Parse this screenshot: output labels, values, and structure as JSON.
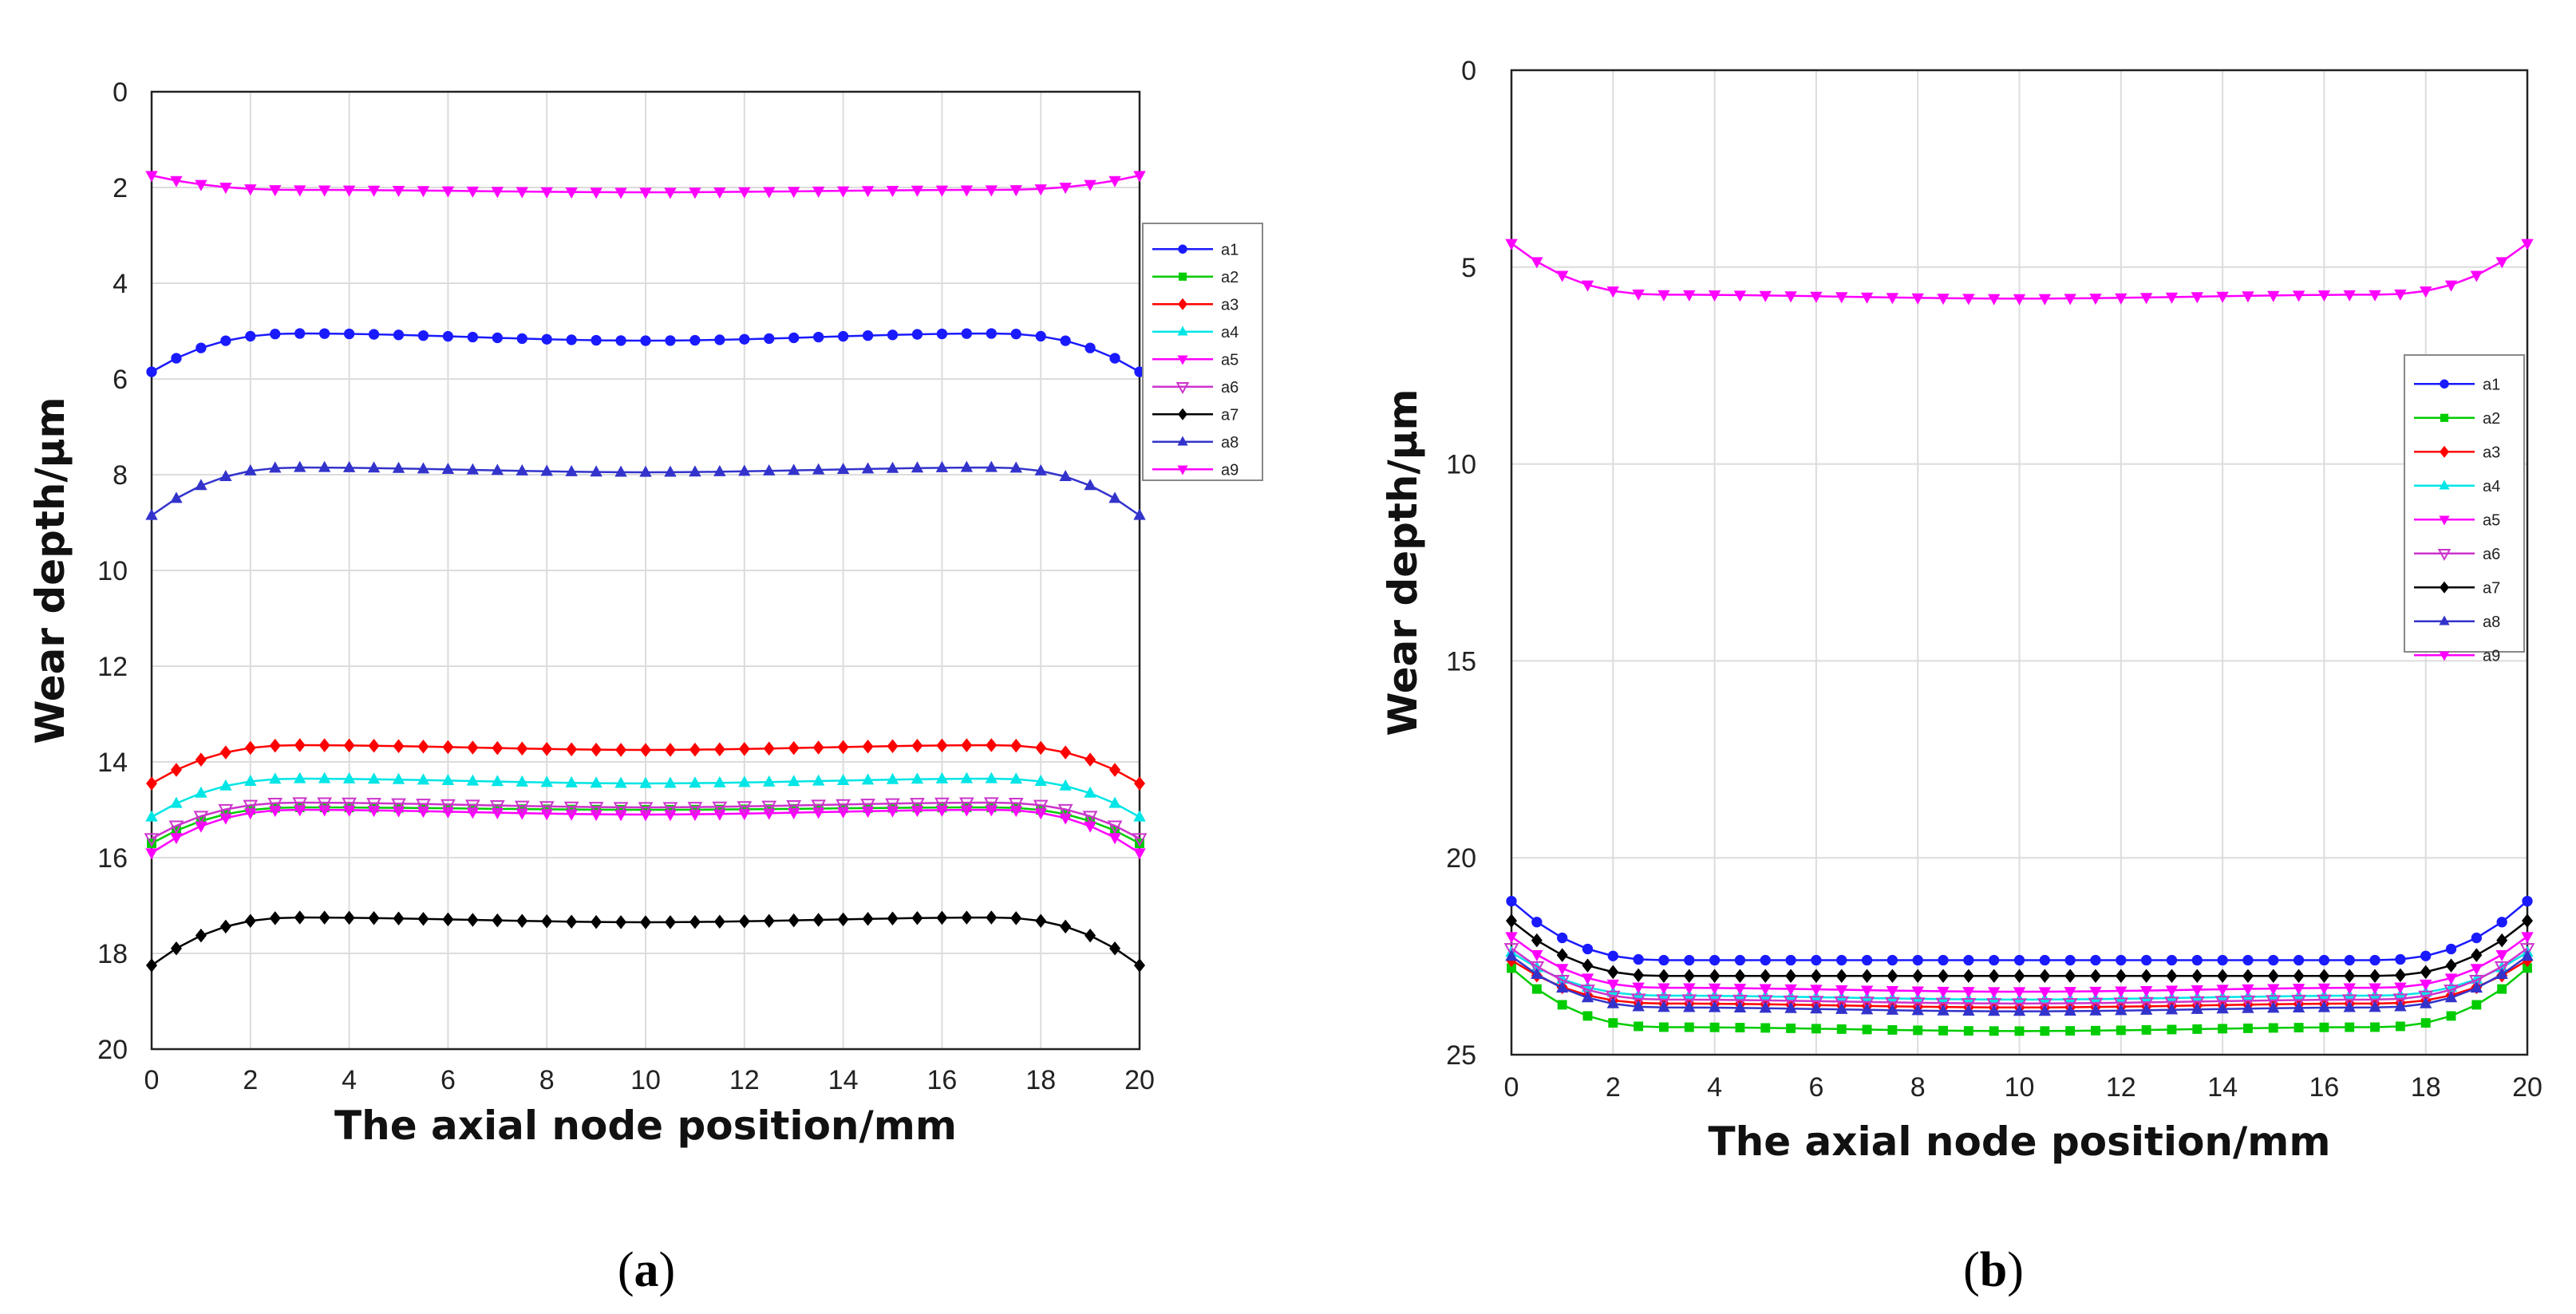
{
  "chart_data": [
    {
      "type": "line",
      "panel_label": {
        "open": "(",
        "letter": "a",
        "close": ")"
      },
      "xlabel": "The axial node position/mm",
      "ylabel": "Wear depth/μm",
      "xlim": [
        0,
        20
      ],
      "ylim": [
        20,
        0
      ],
      "y_inverted": true,
      "xticks": [
        0,
        2,
        4,
        6,
        8,
        10,
        12,
        14,
        16,
        18,
        20
      ],
      "yticks": [
        0,
        2,
        4,
        6,
        8,
        10,
        12,
        14,
        16,
        18,
        20
      ],
      "grid": true,
      "legend_position": "upper right, outside plot area",
      "x_points": 41,
      "series": [
        {
          "name": "a1",
          "color": "#1a1aff",
          "marker": "circle",
          "edge": 5.85,
          "plateau": 5.05,
          "center": 5.2
        },
        {
          "name": "a2",
          "color": "#00cc00",
          "marker": "square",
          "edge": 15.7,
          "plateau": 14.95,
          "center": 15.0
        },
        {
          "name": "a3",
          "color": "#ff0000",
          "marker": "diamond",
          "edge": 14.45,
          "plateau": 13.65,
          "center": 13.75
        },
        {
          "name": "a4",
          "color": "#00e5e5",
          "marker": "triangle-up",
          "edge": 15.15,
          "plateau": 14.35,
          "center": 14.45
        },
        {
          "name": "a5",
          "color": "#ff00ff",
          "marker": "triangle-down",
          "edge": 15.9,
          "plateau": 15.0,
          "center": 15.1
        },
        {
          "name": "a6",
          "color": "#cc33cc",
          "marker": "triangle-down-open",
          "edge": 15.6,
          "plateau": 14.85,
          "center": 14.95
        },
        {
          "name": "a7",
          "color": "#000000",
          "marker": "diamond",
          "edge": 18.25,
          "plateau": 17.25,
          "center": 17.35
        },
        {
          "name": "a8",
          "color": "#3333cc",
          "marker": "triangle-up",
          "edge": 8.85,
          "plateau": 7.85,
          "center": 7.95
        },
        {
          "name": "a9",
          "color": "#ff00ff",
          "marker": "triangle-down",
          "edge": 1.75,
          "plateau": 2.05,
          "center": 2.1
        }
      ]
    },
    {
      "type": "line",
      "panel_label": {
        "open": "(",
        "letter": "b",
        "close": ")"
      },
      "xlabel": "The axial node position/mm",
      "ylabel": "Wear depth/μm",
      "xlim": [
        0,
        20
      ],
      "ylim": [
        25,
        0
      ],
      "y_inverted": true,
      "xticks": [
        0,
        2,
        4,
        6,
        8,
        10,
        12,
        14,
        16,
        18,
        20
      ],
      "yticks": [
        0,
        5,
        10,
        15,
        20,
        25
      ],
      "grid": true,
      "legend_position": "right, inside plot area",
      "x_points": 41,
      "series": [
        {
          "name": "a1",
          "color": "#1a1aff",
          "marker": "circle",
          "edge": 21.1,
          "plateau": 22.6,
          "center": 22.6
        },
        {
          "name": "a2",
          "color": "#00cc00",
          "marker": "square",
          "edge": 22.8,
          "plateau": 24.3,
          "center": 24.4
        },
        {
          "name": "a3",
          "color": "#ff0000",
          "marker": "diamond",
          "edge": 22.6,
          "plateau": 23.7,
          "center": 23.8
        },
        {
          "name": "a4",
          "color": "#00e5e5",
          "marker": "triangle-up",
          "edge": 22.4,
          "plateau": 23.5,
          "center": 23.6
        },
        {
          "name": "a5",
          "color": "#ff00ff",
          "marker": "triangle-down",
          "edge": 22.0,
          "plateau": 23.3,
          "center": 23.4
        },
        {
          "name": "a6",
          "color": "#cc33cc",
          "marker": "triangle-down-open",
          "edge": 22.3,
          "plateau": 23.6,
          "center": 23.7
        },
        {
          "name": "a7",
          "color": "#000000",
          "marker": "diamond",
          "edge": 21.6,
          "plateau": 23.0,
          "center": 23.0
        },
        {
          "name": "a8",
          "color": "#3333cc",
          "marker": "triangle-up",
          "edge": 22.5,
          "plateau": 23.8,
          "center": 23.9
        },
        {
          "name": "a9",
          "color": "#ff00ff",
          "marker": "triangle-down",
          "edge": 4.4,
          "plateau": 5.7,
          "center": 5.8
        }
      ]
    }
  ]
}
